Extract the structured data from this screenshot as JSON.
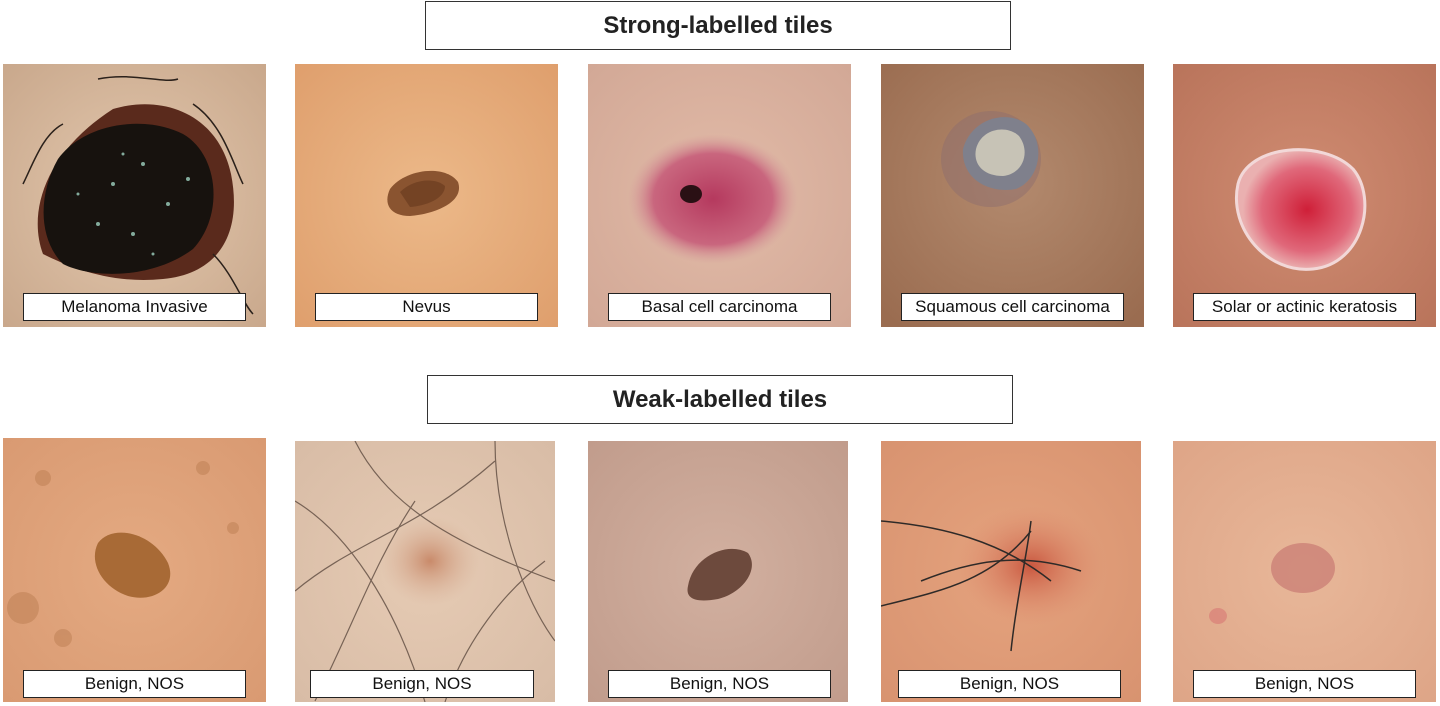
{
  "sections": {
    "strong": {
      "title": "Strong-labelled tiles",
      "tiles": [
        {
          "label": "Melanoma Invasive",
          "skin": "#dcbfa4",
          "lesion": "#1d1712"
        },
        {
          "label": "Nevus",
          "skin": "#e6ae7e",
          "lesion": "#8a5430"
        },
        {
          "label": "Basal cell carcinoma",
          "skin": "#ddb39f",
          "lesion": "#c0496a"
        },
        {
          "label": "Squamous cell carcinoma",
          "skin": "#a97a5d",
          "lesion": "#8f8e9a"
        },
        {
          "label": "Solar or actinic keratosis",
          "skin": "#c8836a",
          "lesion": "#d63445"
        }
      ]
    },
    "weak": {
      "title": "Weak-labelled tiles",
      "tiles": [
        {
          "label": "Benign, NOS",
          "skin": "#e2a57e",
          "lesion": "#a86a36"
        },
        {
          "label": "Benign, NOS",
          "skin": "#e0c6b1",
          "lesion": "#c99072"
        },
        {
          "label": "Benign, NOS",
          "skin": "#cba898",
          "lesion": "#6d4a3d"
        },
        {
          "label": "Benign, NOS",
          "skin": "#e39f7b",
          "lesion": "#c9573f"
        },
        {
          "label": "Benign, NOS",
          "skin": "#e6b394",
          "lesion": "#c97d74"
        }
      ]
    }
  }
}
